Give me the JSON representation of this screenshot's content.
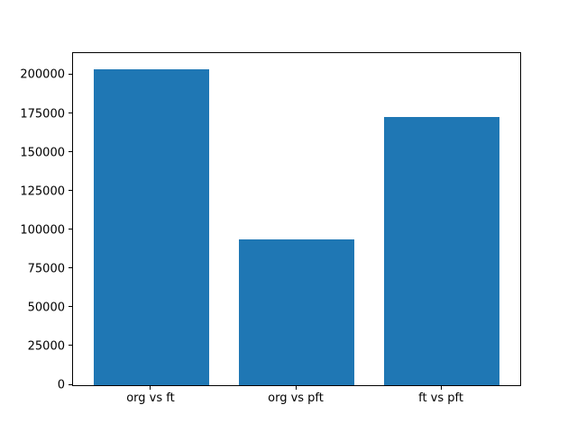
{
  "figure": {
    "background": "#ffffff",
    "bar_color": "#1f77b4",
    "axis_color": "#000000",
    "tick_label_color": "#000000"
  },
  "chart_data": {
    "type": "bar",
    "categories": [
      "org vs ft",
      "org vs pft",
      "ft vs pft"
    ],
    "values": [
      204000,
      94000,
      173000
    ],
    "title": "",
    "xlabel": "",
    "ylabel": "",
    "ylim": [
      0,
      214200
    ],
    "yticks": [
      0,
      25000,
      50000,
      75000,
      100000,
      125000,
      150000,
      175000,
      200000
    ],
    "ytick_labels": [
      "0",
      "25000",
      "50000",
      "75000",
      "100000",
      "125000",
      "150000",
      "175000",
      "200000"
    ],
    "bar_width_fraction": 0.8,
    "grid": false,
    "legend": "none"
  }
}
